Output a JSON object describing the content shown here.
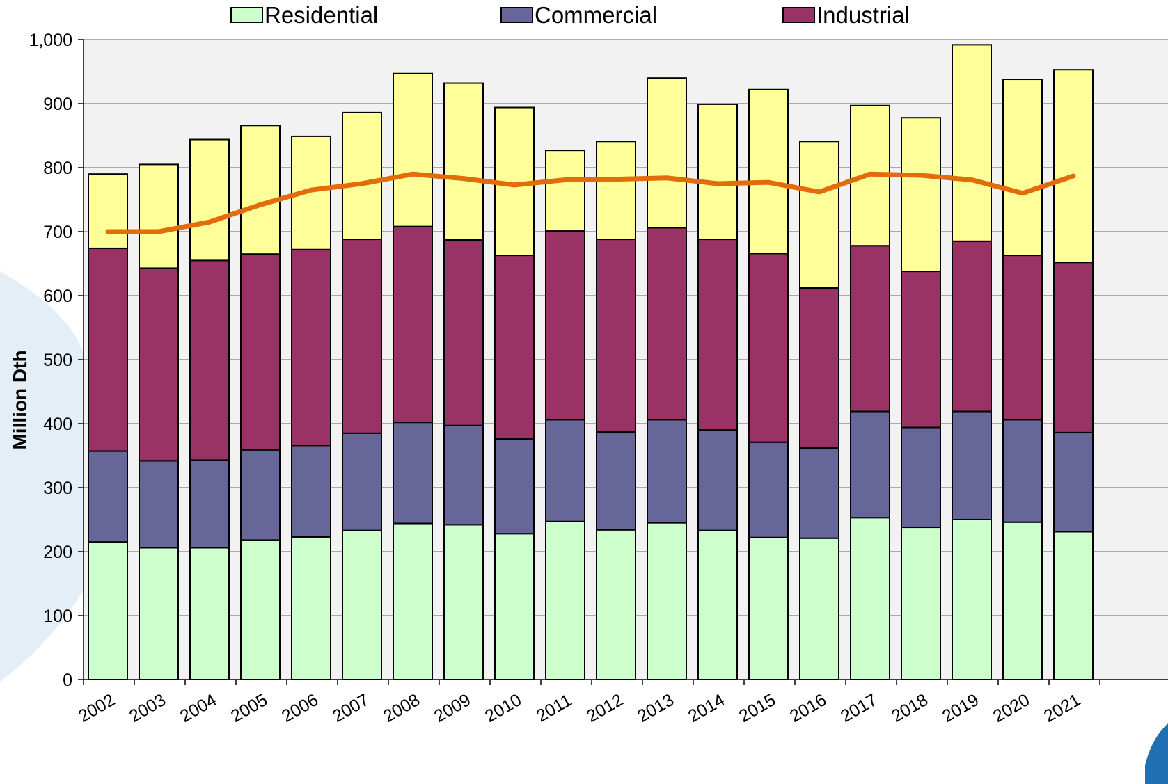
{
  "chart_data": {
    "type": "bar",
    "stacked": true,
    "title": "",
    "xlabel": "",
    "ylabel": "Million Dth",
    "ylim": [
      0,
      1000
    ],
    "yticks": [
      0,
      100,
      200,
      300,
      400,
      500,
      600,
      700,
      800,
      900,
      1000
    ],
    "ytick_labels": [
      "0",
      "100",
      "200",
      "300",
      "400",
      "500",
      "600",
      "700",
      "800",
      "900",
      "1,000"
    ],
    "grid": true,
    "legend_position": "top",
    "categories": [
      "2002",
      "2003",
      "2004",
      "2005",
      "2006",
      "2007",
      "2008",
      "2009",
      "2010",
      "2011",
      "2012",
      "2013",
      "2014",
      "2015",
      "2016",
      "2017",
      "2018",
      "2019",
      "2020",
      "2021"
    ],
    "series": [
      {
        "name": "Residential",
        "color": "#ccffcc",
        "values": [
          215,
          206,
          206,
          218,
          223,
          233,
          244,
          242,
          228,
          247,
          234,
          245,
          233,
          222,
          221,
          253,
          238,
          250,
          246,
          231
        ]
      },
      {
        "name": "Commercial",
        "color": "#666699",
        "values": [
          142,
          136,
          137,
          141,
          143,
          152,
          158,
          155,
          148,
          159,
          153,
          161,
          157,
          149,
          141,
          166,
          156,
          169,
          160,
          155
        ]
      },
      {
        "name": "Industrial",
        "color": "#993366",
        "values": [
          317,
          301,
          312,
          306,
          306,
          303,
          306,
          290,
          287,
          295,
          301,
          300,
          298,
          295,
          250,
          259,
          244,
          266,
          257,
          266
        ]
      },
      {
        "color": "#ffff99",
        "values": [
          116,
          162,
          189,
          201,
          177,
          198,
          239,
          245,
          231,
          126,
          153,
          234,
          211,
          256,
          229,
          219,
          240,
          307,
          275,
          301
        ]
      }
    ],
    "line_series": {
      "color": "#e36c0a",
      "values": [
        700,
        700,
        715,
        742,
        765,
        775,
        790,
        783,
        773,
        781,
        782,
        784,
        775,
        777,
        762,
        790,
        788,
        781,
        760,
        787
      ]
    },
    "colors": {
      "plot_background": "#f2f2f2",
      "gridline": "#7f7f7f",
      "bar_outline": "#000000"
    }
  }
}
